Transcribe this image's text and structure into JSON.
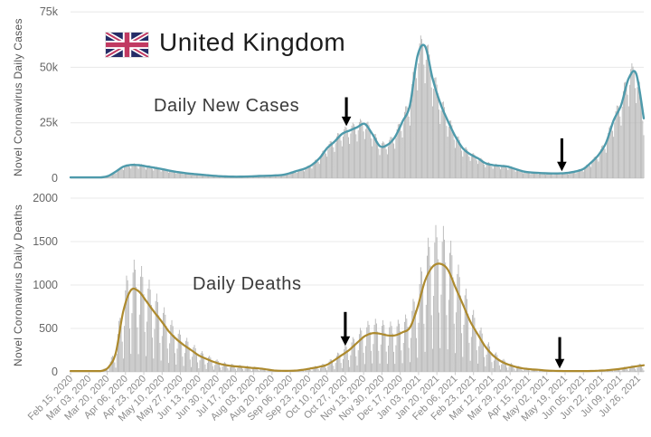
{
  "header": {
    "title": "United Kingdom",
    "flag": {
      "navy": "#252c67",
      "red": "#c13a62",
      "white": "#ffffff"
    }
  },
  "colors": {
    "bars": "#b3b3b3",
    "gridline": "#e8e8e8",
    "baseline": "#dcdcdc",
    "y_tick_text": "#666666",
    "x_tick_text": "#8a8a8a",
    "annotation_arrow": "#000000"
  },
  "chart_data": [
    {
      "id": "daily-new-cases",
      "type": "bar+line",
      "caption": "Daily New Cases",
      "ylabel": "Novel Coronavirus Daily Cases",
      "ylim": [
        0,
        75000
      ],
      "yticks": [
        {
          "value": 0,
          "label": "0"
        },
        {
          "value": 25000,
          "label": "25k"
        },
        {
          "value": 50000,
          "label": "50k"
        },
        {
          "value": 75000,
          "label": "75k"
        }
      ],
      "x_start_date": "Feb 15, 2020",
      "x_end_date": "Jul 31, 2021",
      "x_tick_interval_days": 17,
      "days_total": 532,
      "x_tick_labels": [
        "Feb 15, 2020",
        "Mar 03, 2020",
        "Mar 20, 2020",
        "Apr 06, 2020",
        "Apr 23, 2020",
        "May 10, 2020",
        "May 27, 2020",
        "Jun 13, 2020",
        "Jun 30, 2020",
        "Jul 17, 2020",
        "Aug 03, 2020",
        "Aug 20, 2020",
        "Sep 06, 2020",
        "Sep 23, 2020",
        "Oct 10, 2020",
        "Oct 27, 2020",
        "Nov 13, 2020",
        "Nov 30, 2020",
        "Dec 17, 2020",
        "Jan 03, 2021",
        "Jan 20, 2021",
        "Feb 06, 2021",
        "Feb 23, 2021",
        "Mar 12, 2021",
        "Mar 29, 2021",
        "Apr 15, 2021",
        "May 02, 2021",
        "May 19, 2021",
        "Jun 05, 2021",
        "Jun 22, 2021",
        "Jul 09, 2021",
        "Jul 26, 2021"
      ],
      "line_color": "#4e9aab",
      "line_series_name": "7-day moving average of daily new cases",
      "weekly_avg_values": [
        0,
        0,
        15,
        60,
        350,
        1000,
        3000,
        5200,
        6000,
        5900,
        5400,
        4800,
        4200,
        3500,
        2900,
        2400,
        2000,
        1700,
        1400,
        1100,
        900,
        750,
        700,
        750,
        850,
        1000,
        1100,
        1250,
        1450,
        2200,
        3300,
        4300,
        6000,
        9000,
        13500,
        16500,
        20000,
        21500,
        23000,
        24500,
        20000,
        14500,
        15000,
        18500,
        25500,
        33000,
        55000,
        59500,
        45000,
        34000,
        26000,
        19000,
        13500,
        10800,
        9000,
        6800,
        5900,
        5600,
        5200,
        4100,
        3100,
        2600,
        2400,
        2250,
        2150,
        2200,
        2500,
        3100,
        4200,
        7000,
        10500,
        16000,
        26000,
        33000,
        45000,
        47000,
        27000
      ],
      "bar_weekday_multipliers": [
        0.72,
        0.93,
        1.08,
        1.13,
        1.09,
        1.03,
        0.87
      ],
      "annotations": [
        {
          "type": "down-arrow",
          "x_day": 256,
          "value_top": 36500,
          "value_tip": 23500
        },
        {
          "type": "down-arrow",
          "x_day": 456,
          "value_top": 18000,
          "value_tip": 3200
        }
      ],
      "grid": true,
      "legend": "none"
    },
    {
      "id": "daily-deaths",
      "type": "bar+line",
      "caption": "Daily Deaths",
      "ylabel": "Novel Coronavirus Daily Deaths",
      "ylim": [
        0,
        2000
      ],
      "yticks": [
        {
          "value": 0,
          "label": "0"
        },
        {
          "value": 500,
          "label": "500"
        },
        {
          "value": 1000,
          "label": "1000"
        },
        {
          "value": 1500,
          "label": "1500"
        },
        {
          "value": 2000,
          "label": "2000"
        }
      ],
      "x_start_date": "Feb 15, 2020",
      "x_end_date": "Jul 31, 2021",
      "x_tick_interval_days": 17,
      "days_total": 532,
      "x_tick_labels": [
        "Feb 15, 2020",
        "Mar 03, 2020",
        "Mar 20, 2020",
        "Apr 06, 2020",
        "Apr 23, 2020",
        "May 10, 2020",
        "May 27, 2020",
        "Jun 13, 2020",
        "Jun 30, 2020",
        "Jul 17, 2020",
        "Aug 03, 2020",
        "Aug 20, 2020",
        "Sep 06, 2020",
        "Sep 23, 2020",
        "Oct 10, 2020",
        "Oct 27, 2020",
        "Nov 13, 2020",
        "Nov 30, 2020",
        "Dec 17, 2020",
        "Jan 03, 2021",
        "Jan 20, 2021",
        "Feb 06, 2021",
        "Feb 23, 2021",
        "Mar 12, 2021",
        "Mar 29, 2021",
        "Apr 15, 2021",
        "May 02, 2021",
        "May 19, 2021",
        "Jun 05, 2021",
        "Jun 22, 2021",
        "Jul 09, 2021",
        "Jul 26, 2021"
      ],
      "line_color": "#ad8a2e",
      "line_series_name": "7-day moving average of daily deaths",
      "weekly_avg_values": [
        0,
        0,
        0,
        1,
        8,
        50,
        220,
        700,
        940,
        930,
        820,
        700,
        590,
        470,
        380,
        310,
        250,
        190,
        150,
        115,
        88,
        72,
        62,
        55,
        46,
        40,
        28,
        16,
        12,
        12,
        16,
        26,
        42,
        58,
        82,
        135,
        195,
        255,
        335,
        410,
        445,
        440,
        420,
        420,
        455,
        510,
        740,
        1050,
        1210,
        1245,
        1180,
        980,
        780,
        580,
        430,
        290,
        190,
        125,
        85,
        58,
        40,
        30,
        24,
        16,
        12,
        10,
        9,
        8,
        9,
        10,
        14,
        18,
        26,
        36,
        50,
        64,
        76
      ],
      "bar_weekday_multipliers": [
        0.22,
        0.72,
        1.22,
        1.38,
        1.26,
        1.05,
        0.55
      ],
      "annotations": [
        {
          "type": "down-arrow",
          "x_day": 255,
          "value_top": 690,
          "value_tip": 300
        },
        {
          "type": "down-arrow",
          "x_day": 454,
          "value_top": 400,
          "value_tip": 40
        }
      ],
      "grid": true,
      "legend": "none"
    }
  ]
}
